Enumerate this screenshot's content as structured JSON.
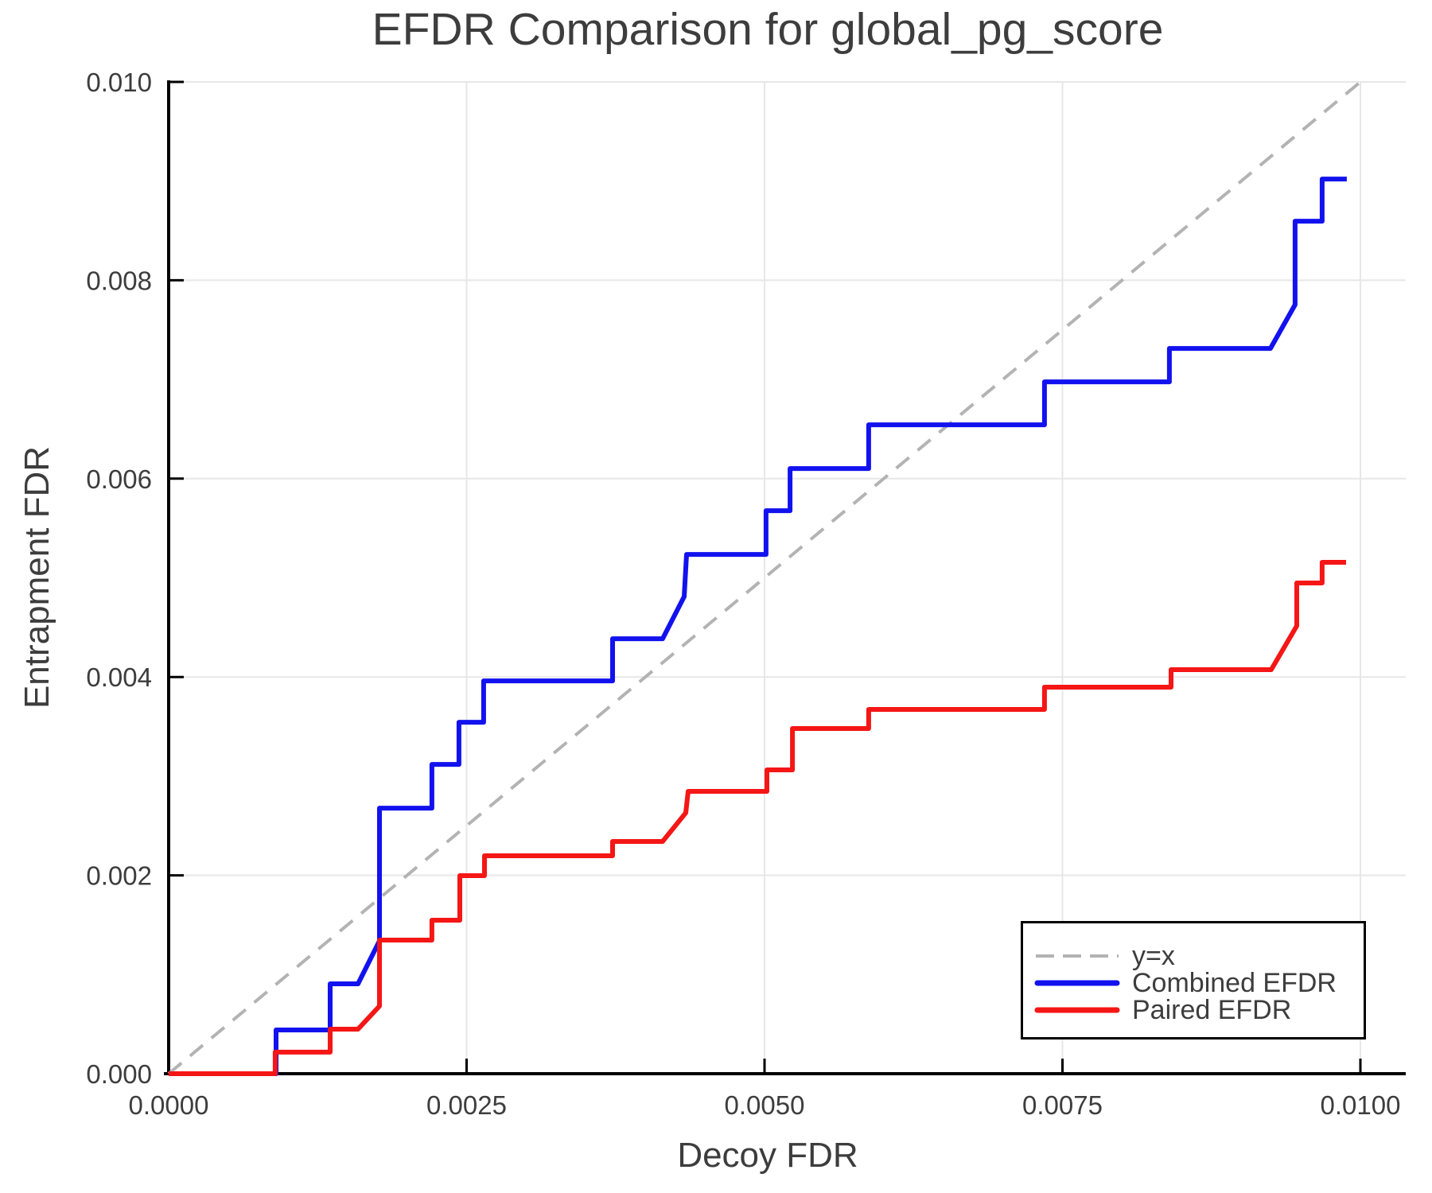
{
  "chart_data": {
    "type": "line",
    "title": "EFDR Comparison for global_pg_score",
    "xlabel": "Decoy FDR",
    "ylabel": "Entrapment FDR",
    "xlim": [
      0,
      0.010381
    ],
    "ylim": [
      0,
      0.01
    ],
    "grid": true,
    "legend_position": "lower right",
    "xticks": {
      "values": [
        0,
        0.0025,
        0.005,
        0.0075,
        0.01
      ],
      "labels": [
        "0.0000",
        "0.0025",
        "0.0050",
        "0.0075",
        "0.0100"
      ]
    },
    "yticks": {
      "values": [
        0,
        0.002,
        0.004,
        0.006,
        0.008,
        0.01
      ],
      "labels": [
        "0.000",
        "0.002",
        "0.004",
        "0.006",
        "0.008",
        "0.010"
      ]
    },
    "colors": {
      "grid": "#e7e7e7",
      "spine": "#000000",
      "text": "#3d3d3d",
      "background": "#ffffff",
      "identity": "#b3b3b3",
      "combined": "#1212ef",
      "paired": "#f51616"
    },
    "series": [
      {
        "name": "y=x",
        "slug": "identity-line",
        "style": "dashed",
        "color": "#b3b3b3",
        "points": [
          [
            0,
            0
          ],
          [
            0.01,
            0.01
          ]
        ]
      },
      {
        "name": "Combined EFDR",
        "slug": "combined-efdr-line",
        "style": "solid",
        "color": "#1212ef",
        "points": [
          [
            0,
            0
          ],
          [
            0.000901,
            0
          ],
          [
            0.000901,
            0.000441
          ],
          [
            0.001355,
            0.000441
          ],
          [
            0.001355,
            0.000906
          ],
          [
            0.001589,
            0.000906
          ],
          [
            0.001769,
            0.001339
          ],
          [
            0.001769,
            0.002678
          ],
          [
            0.002209,
            0.002678
          ],
          [
            0.002209,
            0.003119
          ],
          [
            0.002436,
            0.003119
          ],
          [
            0.002436,
            0.003544
          ],
          [
            0.002643,
            0.003544
          ],
          [
            0.002643,
            0.003961
          ],
          [
            0.003725,
            0.003961
          ],
          [
            0.003725,
            0.004386
          ],
          [
            0.004145,
            0.004386
          ],
          [
            0.004326,
            0.004811
          ],
          [
            0.004346,
            0.005236
          ],
          [
            0.005013,
            0.005236
          ],
          [
            0.005013,
            0.005677
          ],
          [
            0.005214,
            0.005677
          ],
          [
            0.005214,
            0.006102
          ],
          [
            0.005874,
            0.006102
          ],
          [
            0.005874,
            0.006543
          ],
          [
            0.007349,
            0.006543
          ],
          [
            0.007349,
            0.006976
          ],
          [
            0.008397,
            0.006976
          ],
          [
            0.008397,
            0.007313
          ],
          [
            0.009245,
            0.007313
          ],
          [
            0.009452,
            0.007754
          ],
          [
            0.009452,
            0.008596
          ],
          [
            0.009679,
            0.008596
          ],
          [
            0.009679,
            0.009021
          ],
          [
            0.009886,
            0.009021
          ]
        ]
      },
      {
        "name": "Paired EFDR",
        "slug": "paired-efdr-line",
        "style": "solid",
        "color": "#f51616",
        "points": [
          [
            0,
            0
          ],
          [
            0.000894,
            0
          ],
          [
            0.000894,
            0.000217
          ],
          [
            0.001355,
            0.000217
          ],
          [
            0.001355,
            0.000449
          ],
          [
            0.001589,
            0.000449
          ],
          [
            0.001769,
            0.000682
          ],
          [
            0.001769,
            0.001347
          ],
          [
            0.002209,
            0.001347
          ],
          [
            0.002209,
            0.001548
          ],
          [
            0.002443,
            0.001548
          ],
          [
            0.002443,
            0.001997
          ],
          [
            0.00265,
            0.001997
          ],
          [
            0.00265,
            0.002197
          ],
          [
            0.003725,
            0.002197
          ],
          [
            0.003725,
            0.002342
          ],
          [
            0.004145,
            0.002342
          ],
          [
            0.004339,
            0.00263
          ],
          [
            0.004359,
            0.002847
          ],
          [
            0.00502,
            0.002847
          ],
          [
            0.00502,
            0.003063
          ],
          [
            0.005234,
            0.003063
          ],
          [
            0.005234,
            0.00348
          ],
          [
            0.005874,
            0.00348
          ],
          [
            0.005874,
            0.003673
          ],
          [
            0.007349,
            0.003673
          ],
          [
            0.007349,
            0.003897
          ],
          [
            0.008411,
            0.003897
          ],
          [
            0.008411,
            0.004074
          ],
          [
            0.009252,
            0.004074
          ],
          [
            0.009466,
            0.004515
          ],
          [
            0.009466,
            0.004948
          ],
          [
            0.009679,
            0.004948
          ],
          [
            0.009679,
            0.005156
          ],
          [
            0.00988,
            0.005156
          ]
        ]
      }
    ]
  }
}
